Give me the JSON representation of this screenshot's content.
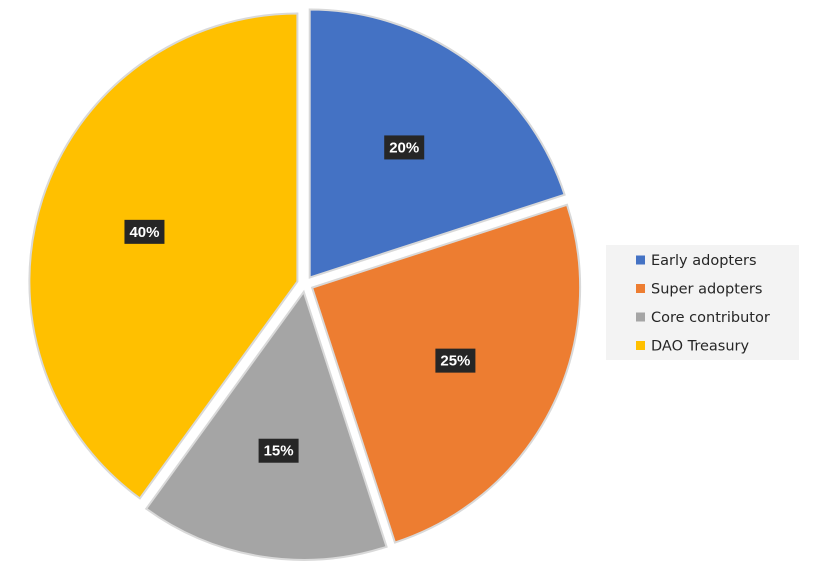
{
  "chart_data": {
    "type": "pie",
    "title": "",
    "legend_position": "right",
    "slices": [
      {
        "name": "Early adopters",
        "value": 20,
        "label": "20%",
        "color": "#4472C4"
      },
      {
        "name": "Super adopters",
        "value": 25,
        "label": "25%",
        "color": "#ED7D31"
      },
      {
        "name": "Core contributor",
        "value": 15,
        "label": "15%",
        "color": "#A5A5A5"
      },
      {
        "name": "DAO Treasury",
        "value": 40,
        "label": "40%",
        "color": "#FFC000"
      }
    ],
    "separator_color": "#D9D9D9"
  }
}
